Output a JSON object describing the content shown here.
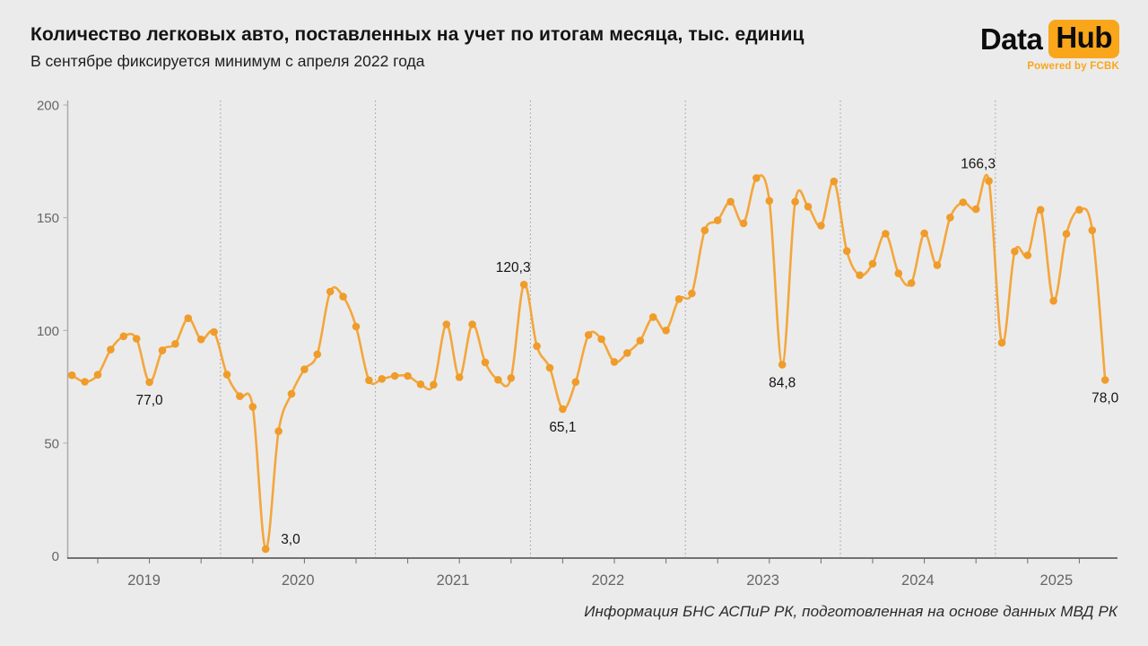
{
  "header": {
    "title": "Количество легковых авто, поставленных на учет по итогам месяца, тыс. единиц",
    "subtitle": "В сентябре фиксируется минимум с апреля 2022 года"
  },
  "logo": {
    "part1": "Data",
    "part2": "Hub",
    "caption": "Powered by FCBK",
    "accent_color": "#F9A61B"
  },
  "footer": {
    "source": "Информация БНС АСПиР РК, подготовленная на основе данных МВД РК"
  },
  "chart_data": {
    "type": "line",
    "title": "Количество легковых авто, поставленных на учет по итогам месяца, тыс. единиц",
    "subtitle": "В сентябре фиксируется минимум с апреля 2022 года",
    "unit": "тыс. единиц",
    "frequency": "monthly",
    "start_month": "2019-01",
    "end_month": "2025-09",
    "y_axis": {
      "min": 0,
      "max": 200,
      "ticks": [
        0,
        50,
        100,
        150,
        200
      ]
    },
    "x_axis": {
      "year_labels": [
        "2019",
        "2020",
        "2021",
        "2022",
        "2023",
        "2024",
        "2025"
      ]
    },
    "series_by_year": [
      {
        "year": "2019",
        "values": [
          80.1,
          77.2,
          80.3,
          91.5,
          97.4,
          96.3,
          77.0,
          91.1,
          94.0,
          105.4,
          96.0,
          99.3
        ]
      },
      {
        "year": "2020",
        "values": [
          80.4,
          70.8,
          66.1,
          3.0,
          55.3,
          71.9,
          82.7,
          89.4,
          117.2,
          115.0,
          101.7,
          77.9
        ]
      },
      {
        "year": "2021",
        "values": [
          78.5,
          79.8,
          79.8,
          76.1,
          75.9,
          102.7,
          79.2,
          102.7,
          85.8,
          78.1,
          78.9,
          120.3
        ]
      },
      {
        "year": "2022",
        "values": [
          93.0,
          83.4,
          65.1,
          77.1,
          98.0,
          96.1,
          86.0,
          90.0,
          95.5,
          105.9,
          100.0,
          113.9
        ]
      },
      {
        "year": "2023",
        "values": [
          116.4,
          144.4,
          148.8,
          157.1,
          147.5,
          167.6,
          157.5,
          84.8,
          157.1,
          154.9,
          146.5,
          166.1
        ]
      },
      {
        "year": "2024",
        "values": [
          135.2,
          124.5,
          129.6,
          142.9,
          125.3,
          121.0,
          143.1,
          128.9,
          150.1,
          156.8,
          153.8,
          166.3
        ]
      },
      {
        "year": "2025",
        "values": [
          94.5,
          135.0,
          133.3,
          153.5,
          113.1,
          142.8,
          153.5,
          144.4,
          78.0
        ]
      }
    ],
    "annotations": [
      {
        "month": "2019-07",
        "value": 77.0,
        "label": "77,0",
        "position": "below"
      },
      {
        "month": "2020-04",
        "value": 3.0,
        "label": "3,0",
        "position": "right"
      },
      {
        "month": "2021-12",
        "value": 120.3,
        "label": "120,3",
        "position": "above"
      },
      {
        "month": "2022-03",
        "value": 65.1,
        "label": "65,1",
        "position": "below"
      },
      {
        "month": "2023-08",
        "value": 84.8,
        "label": "84,8",
        "position": "below"
      },
      {
        "month": "2024-12",
        "value": 166.3,
        "label": "166,3",
        "position": "above"
      },
      {
        "month": "2025-09",
        "value": 78.0,
        "label": "78,0",
        "position": "below"
      }
    ],
    "style": {
      "line_color": "#F4A63C",
      "point_color": "#EF9C2A",
      "background": "#EBEBEB",
      "grid_color": "#999999",
      "axis_color": "#4A4A4A",
      "y_axis_color": "#ABABAB",
      "tick_label_color": "#666666",
      "annotation_color": "#141414",
      "grid": "vertical-dashed-yearly",
      "legend": "none"
    }
  }
}
